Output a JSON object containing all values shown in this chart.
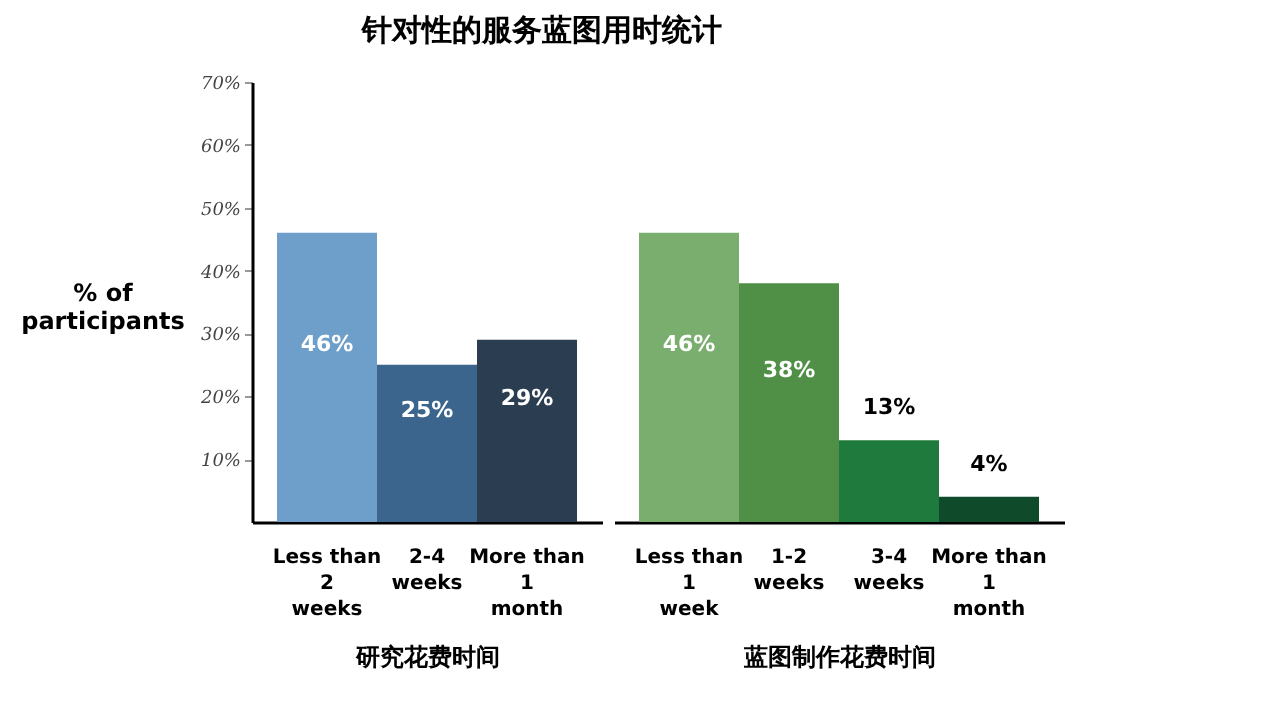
{
  "chart_data": [
    {
      "type": "bar",
      "title": "针对性的服务蓝图用时统计",
      "ylabel": "% of participants",
      "xlabel": "研究花费时间",
      "categories": [
        "Less than\n2\nweeks",
        "2-4\nweeks",
        "More than\n1\nmonth"
      ],
      "values": [
        46,
        25,
        29
      ],
      "colors": [
        "#6e9fca",
        "#3b658d",
        "#2b3d50"
      ],
      "ylim": [
        0,
        70
      ],
      "yticks": [
        {
          "value": 10,
          "label": "10%"
        },
        {
          "value": 20,
          "label": "20%"
        },
        {
          "value": 30,
          "label": "30%"
        },
        {
          "value": 40,
          "label": "40%"
        },
        {
          "value": 50,
          "label": "50%"
        },
        {
          "value": 60,
          "label": "60%"
        },
        {
          "value": 70,
          "label": "70%"
        }
      ],
      "value_labels": [
        "46%",
        "25%",
        "29%"
      ],
      "grid": false
    },
    {
      "type": "bar",
      "xlabel": "蓝图制作花费时间",
      "categories": [
        "Less than\n1\nweek",
        "1-2\nweeks",
        "3-4\nweeks",
        "More than\n1\nmonth"
      ],
      "values": [
        46,
        38,
        13,
        4
      ],
      "colors": [
        "#7aae6f",
        "#4f8f46",
        "#1f7a3d",
        "#0f4a2a"
      ],
      "ylim": [
        0,
        70
      ],
      "value_labels": [
        "46%",
        "38%",
        "13%",
        "4%"
      ],
      "grid": false,
      "tick_labels": "x"
    }
  ]
}
